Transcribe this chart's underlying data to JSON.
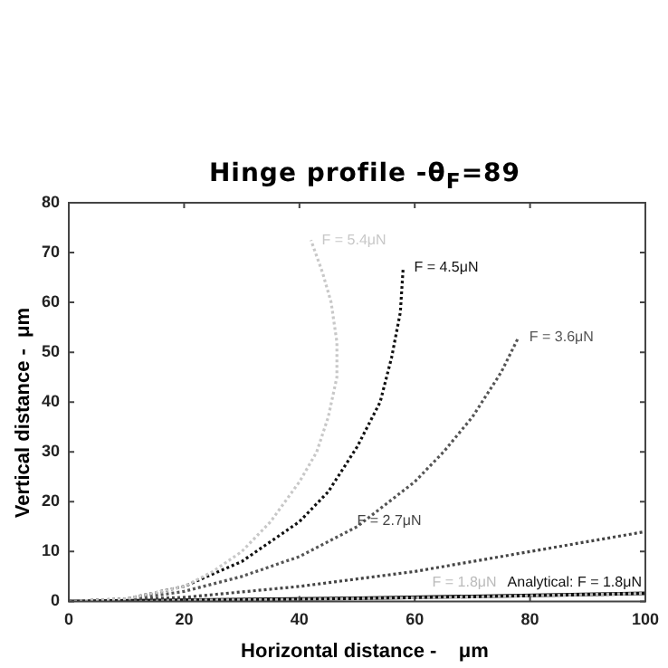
{
  "chart_data": {
    "type": "line",
    "title": "Hinge profile -θ$_{F}$=89",
    "xlabel": "Horizontal distance -    μm",
    "ylabel": "Vertical distance -  μm",
    "xlim": [
      0,
      100
    ],
    "xticks": [
      0,
      20,
      40,
      60,
      80,
      100
    ],
    "ylim": [
      0,
      80
    ],
    "yticks": [
      0,
      10,
      20,
      30,
      40,
      50,
      60,
      70,
      80
    ],
    "grid": false,
    "legend": false,
    "marker": "none",
    "series": [
      {
        "name": "F = 5.4μN",
        "color": "#c8c8c8",
        "line_style": "dotted",
        "x": [
          0,
          10,
          20,
          25,
          30,
          35,
          40,
          43,
          45,
          46.5,
          46.5,
          45.5,
          44,
          42
        ],
        "values": [
          0,
          0.5,
          3,
          6,
          10,
          16,
          24,
          30,
          37,
          45,
          52,
          60,
          66,
          72.5
        ]
      },
      {
        "name": "F = 4.5μN",
        "color": "#111111",
        "line_style": "dotted",
        "x": [
          0,
          10,
          20,
          30,
          40,
          45,
          50,
          54,
          56,
          57.5,
          58
        ],
        "values": [
          0,
          0.5,
          3,
          8,
          16,
          22,
          31,
          40,
          49,
          58,
          67
        ]
      },
      {
        "name": "F = 3.6μN",
        "color": "#555555",
        "line_style": "dotted",
        "x": [
          0,
          10,
          20,
          30,
          40,
          50,
          60,
          65,
          70,
          75,
          78
        ],
        "values": [
          0,
          0.3,
          2,
          5,
          9,
          15,
          24,
          30,
          37,
          46,
          53
        ]
      },
      {
        "name": "F = 2.7μN",
        "color": "#444444",
        "line_style": "dotted",
        "x": [
          0,
          20,
          40,
          60,
          80,
          100
        ],
        "values": [
          0,
          0.8,
          3,
          6,
          10,
          14
        ]
      },
      {
        "name": "F = 1.8μN",
        "color": "#bbbbbb",
        "line_style": "dotted",
        "x": [
          0,
          40,
          70,
          100
        ],
        "values": [
          0,
          0.4,
          0.9,
          1.6
        ]
      },
      {
        "name": "Analytical: F = 1.8μN",
        "color": "#111111",
        "line_style": "solid",
        "x": [
          0,
          50,
          100
        ],
        "values": [
          0,
          0.6,
          1.6
        ]
      }
    ]
  }
}
